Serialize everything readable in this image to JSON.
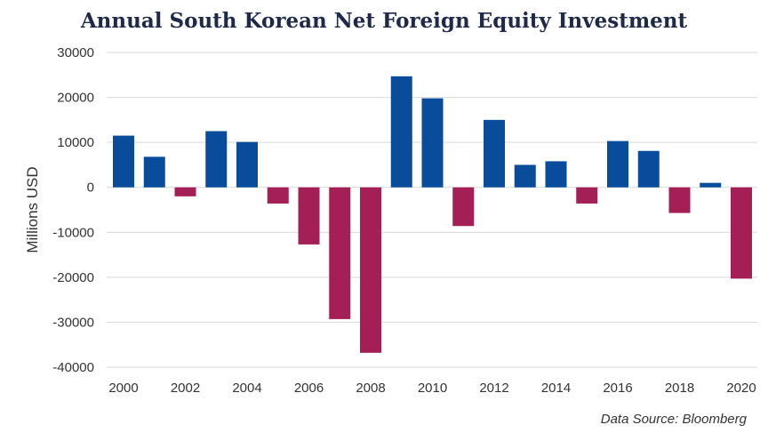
{
  "chart_data": {
    "type": "bar",
    "title": "Annual South Korean Net Foreign Equity Investment",
    "ylabel": "Millions USD",
    "xlabel": "",
    "source": "Data Source: Bloomberg",
    "ylim": [
      -40000,
      30000
    ],
    "yticks": [
      30000,
      20000,
      10000,
      0,
      -10000,
      -20000,
      -30000,
      -40000
    ],
    "ytick_labels": [
      "30000",
      "20000",
      "10000",
      "0",
      "-10000",
      "-20000",
      "-30000",
      "-40000"
    ],
    "xtick_labels": [
      "2000",
      "2002",
      "2004",
      "2006",
      "2008",
      "2010",
      "2012",
      "2014",
      "2016",
      "2018",
      "2020"
    ],
    "grid": true,
    "colors": {
      "positive": "#0a4c9c",
      "negative": "#a31f55",
      "grid": "#d9d9d9"
    },
    "categories": [
      "2000",
      "2001",
      "2002",
      "2003",
      "2004",
      "2005",
      "2006",
      "2007",
      "2008",
      "2009",
      "2010",
      "2011",
      "2012",
      "2013",
      "2014",
      "2015",
      "2016",
      "2017",
      "2018",
      "2019",
      "2020"
    ],
    "values": [
      11500,
      6800,
      -2000,
      12500,
      10100,
      -3600,
      -12700,
      -29300,
      -36800,
      24700,
      19800,
      -8600,
      15000,
      5000,
      5800,
      -3600,
      10300,
      8100,
      -5700,
      1000,
      -20300
    ]
  }
}
